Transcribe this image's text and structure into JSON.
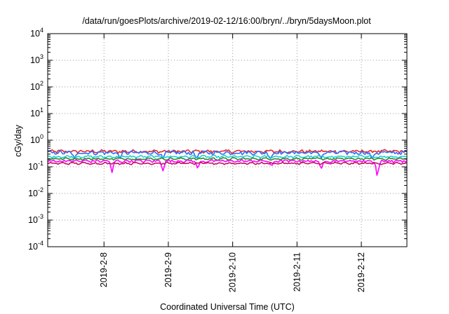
{
  "chart_data": {
    "type": "line",
    "title": "/data/run/goesPlots/archive/2019-02-12/16:00/bryn/../bryn/5daysMoon.plot",
    "xlabel": "Coordinated Universal Time (UTC)",
    "ylabel": "cGy/day",
    "yscale": "log",
    "ylim": [
      0.0001,
      10000
    ],
    "ytick_labels": [
      {
        "base": "10",
        "exp": "-4",
        "value": 0.0001
      },
      {
        "base": "10",
        "exp": "-3",
        "value": 0.001
      },
      {
        "base": "10",
        "exp": "-2",
        "value": 0.01
      },
      {
        "base": "10",
        "exp": "-1",
        "value": 0.1
      },
      {
        "base": "10",
        "exp": "0",
        "value": 1
      },
      {
        "base": "10",
        "exp": "1",
        "value": 10
      },
      {
        "base": "10",
        "exp": "2",
        "value": 100
      },
      {
        "base": "10",
        "exp": "3",
        "value": 1000
      },
      {
        "base": "10",
        "exp": "4",
        "value": 10000
      }
    ],
    "xlim": [
      "2019-02-07 03:00",
      "2019-02-12 17:00"
    ],
    "xtick_labels": [
      "2019-2-8",
      "2019-2-9",
      "2019-2-10",
      "2019-2-11",
      "2019-2-12"
    ],
    "xticks": [
      "2019-02-08 00:00",
      "2019-02-09 00:00",
      "2019-02-10 00:00",
      "2019-02-11 00:00",
      "2019-02-12 00:00"
    ],
    "grid": true,
    "series": [
      {
        "color": "#e8262a",
        "level": 0.38,
        "jitter": 0.12,
        "dips": []
      },
      {
        "color": "#2f6bff",
        "level": 0.34,
        "jitter": 0.14,
        "dips": [
          {
            "t": "2019-02-07 13:00",
            "v": 0.2
          },
          {
            "t": "2019-02-08 06:00",
            "v": 0.2
          },
          {
            "t": "2019-02-08 22:00",
            "v": 0.2
          },
          {
            "t": "2019-02-09 10:30",
            "v": 0.19
          },
          {
            "t": "2019-02-10 14:00",
            "v": 0.18
          },
          {
            "t": "2019-02-11 09:00",
            "v": 0.2
          },
          {
            "t": "2019-02-12 04:00",
            "v": 0.18
          }
        ]
      },
      {
        "color": "#20d0d0",
        "level": 0.24,
        "jitter": 0.08,
        "dips": []
      },
      {
        "color": "#2e8b2e",
        "level": 0.2,
        "jitter": 0.07,
        "dips": []
      },
      {
        "color": "#ff00ff",
        "level": 0.165,
        "jitter": 0.1,
        "dips": [
          {
            "t": "2019-02-08 03:00",
            "v": 0.06
          },
          {
            "t": "2019-02-08 22:00",
            "v": 0.07
          },
          {
            "t": "2019-02-09 11:00",
            "v": 0.08
          },
          {
            "t": "2019-02-10 14:30",
            "v": 0.1
          },
          {
            "t": "2019-02-11 09:00",
            "v": 0.075
          },
          {
            "t": "2019-02-12 06:00",
            "v": 0.028
          }
        ]
      },
      {
        "color": "#c01060",
        "level": 0.135,
        "jitter": 0.06,
        "dips": []
      }
    ]
  }
}
